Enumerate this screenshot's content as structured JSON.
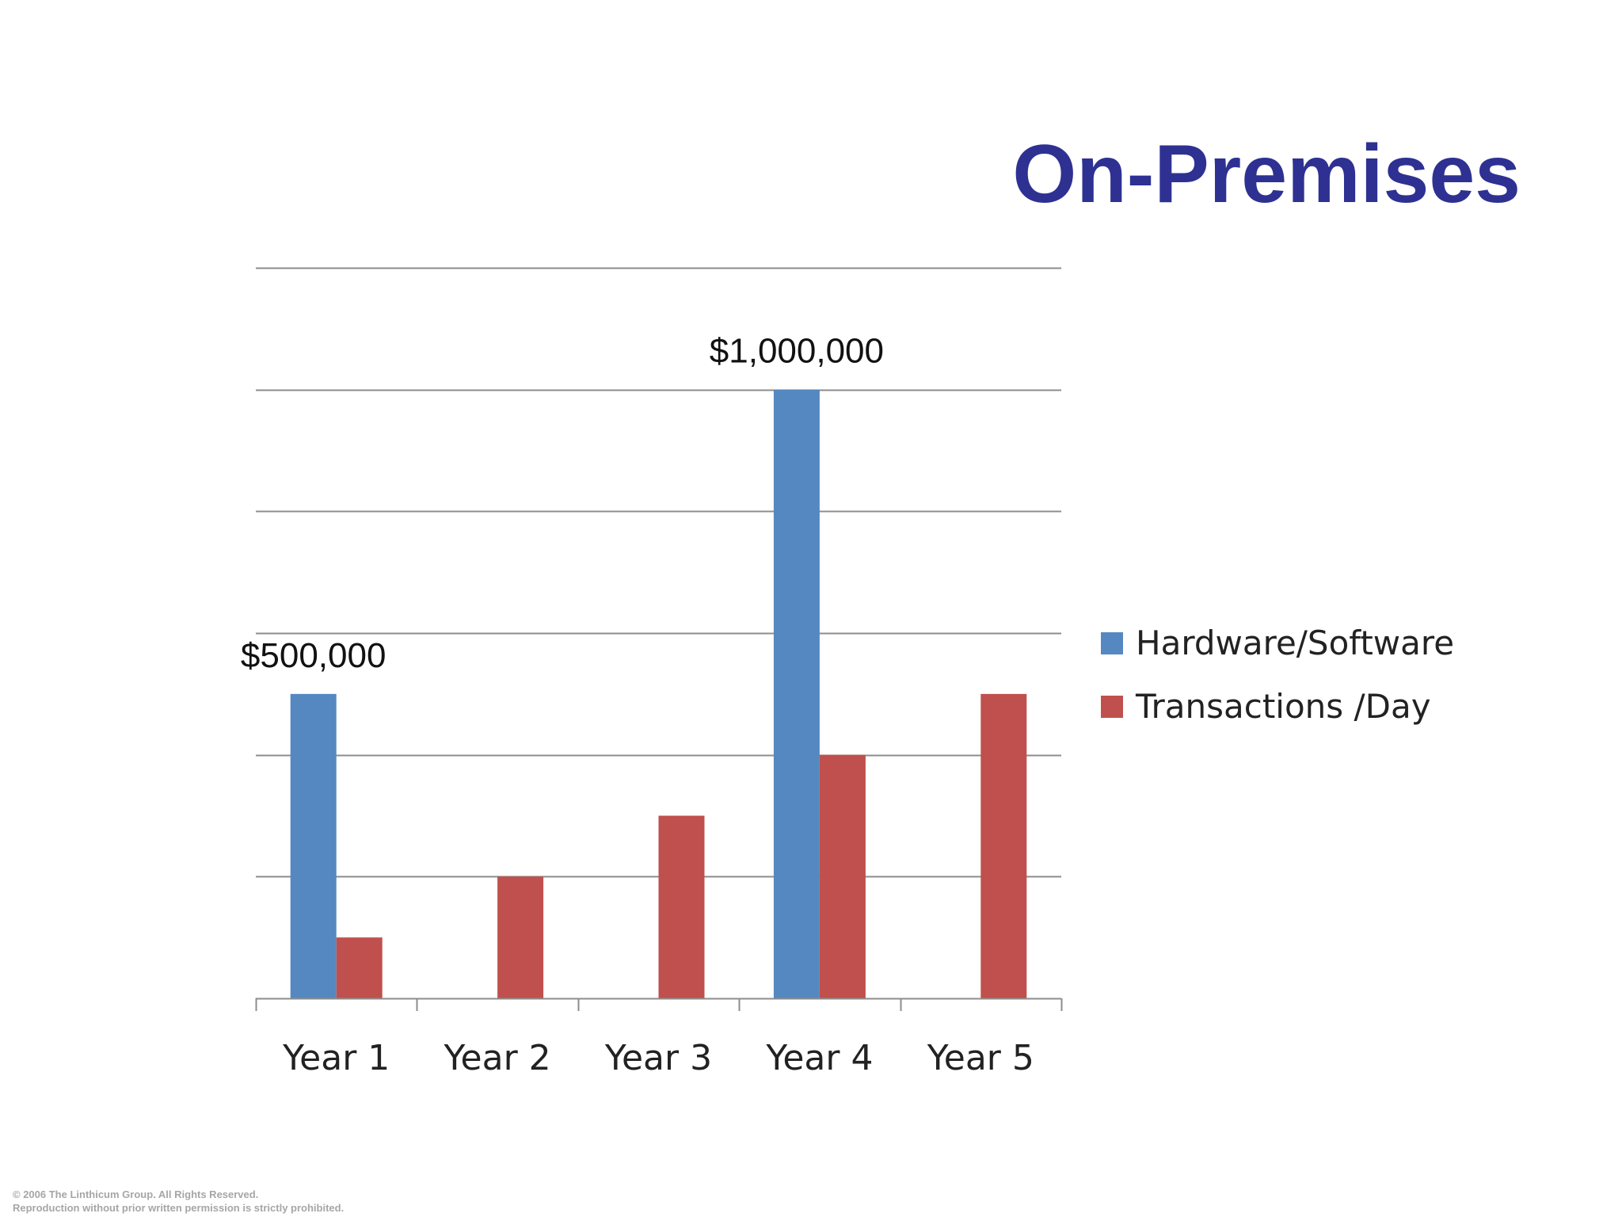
{
  "slide": {
    "title": "On-Premises",
    "footer": {
      "line1": "© 2006 The Linthicum Group. All Rights Reserved.",
      "line2": "Reproduction without prior written permission is strictly prohibited."
    },
    "title_color": "#2e3192"
  },
  "chart_data": {
    "type": "bar",
    "title": "",
    "xlabel": "",
    "ylabel": "",
    "categories": [
      "Year 1",
      "Year 2",
      "Year 3",
      "Year 4",
      "Year 5"
    ],
    "series": [
      {
        "name": "Hardware/Software",
        "color": "#5588c0",
        "values": [
          500000,
          0,
          0,
          1000000,
          0
        ]
      },
      {
        "name": "Transactions /Day",
        "color": "#c0504d",
        "values": [
          100000,
          200000,
          300000,
          400000,
          500000
        ]
      }
    ],
    "data_labels": [
      {
        "series": 0,
        "category": "Year 1",
        "text": "$500,000"
      },
      {
        "series": 0,
        "category": "Year 4",
        "text": "$1,000,000"
      }
    ],
    "ylim": [
      0,
      1200000
    ],
    "y_gridlines": [
      0,
      200000,
      400000,
      600000,
      800000,
      1000000,
      1200000
    ],
    "y_tick_labels_shown": false,
    "grid": true,
    "legend_position": "right",
    "gridline_color": "#8c8c8c"
  }
}
